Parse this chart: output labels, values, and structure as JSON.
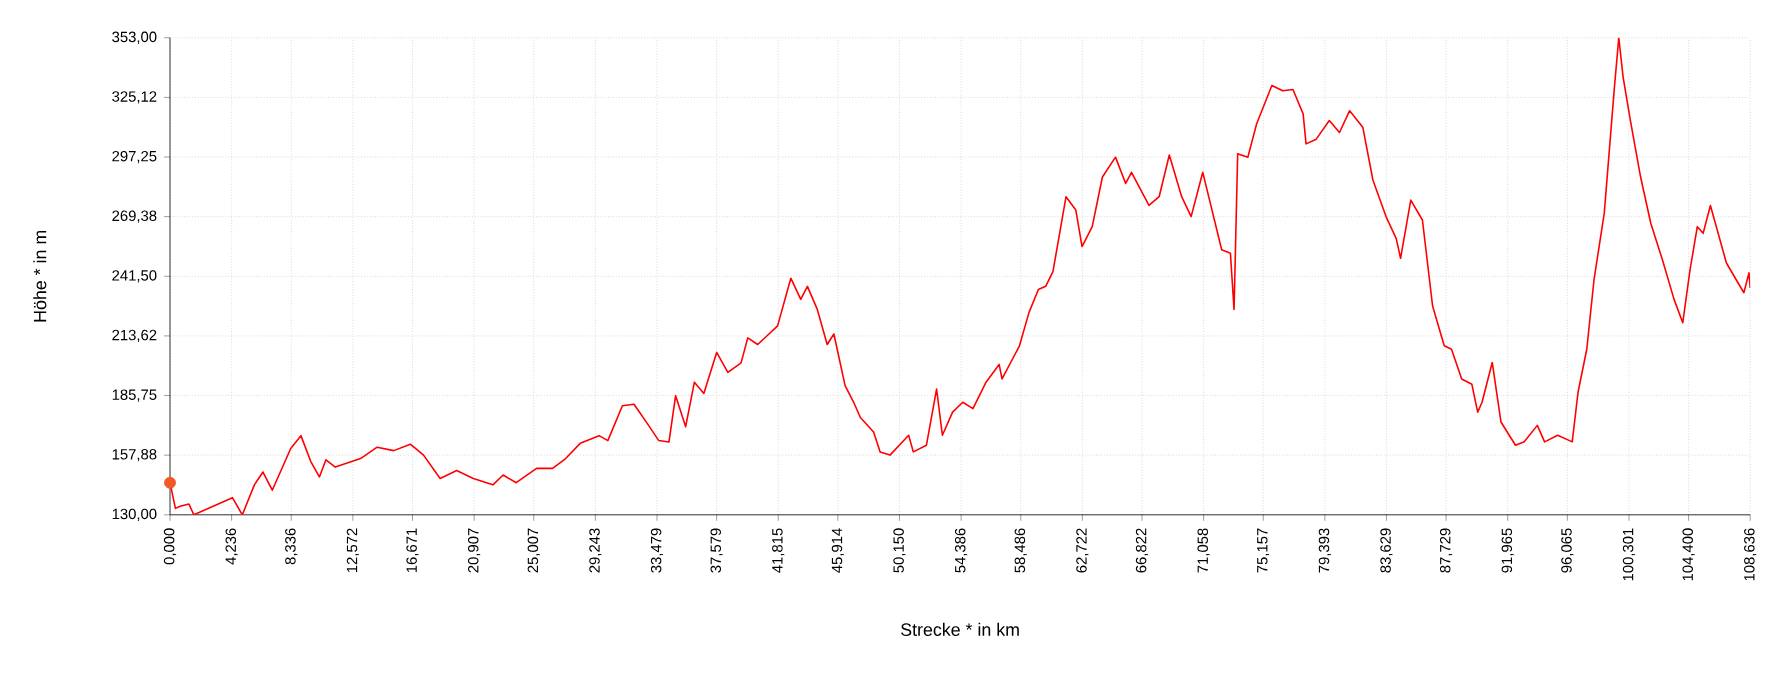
{
  "chart_data": {
    "type": "line",
    "xlabel": "Strecke *  in  km",
    "ylabel": "Höhe *  in  m",
    "xlim": [
      0,
      108.636
    ],
    "ylim": [
      130,
      353
    ],
    "xticks": [
      {
        "value": 0,
        "label": "0,000"
      },
      {
        "value": 4.236,
        "label": "4,236"
      },
      {
        "value": 8.336,
        "label": "8,336"
      },
      {
        "value": 12.572,
        "label": "12,572"
      },
      {
        "value": 16.671,
        "label": "16,671"
      },
      {
        "value": 20.907,
        "label": "20,907"
      },
      {
        "value": 25.007,
        "label": "25,007"
      },
      {
        "value": 29.243,
        "label": "29,243"
      },
      {
        "value": 33.479,
        "label": "33,479"
      },
      {
        "value": 37.579,
        "label": "37,579"
      },
      {
        "value": 41.815,
        "label": "41,815"
      },
      {
        "value": 45.914,
        "label": "45,914"
      },
      {
        "value": 50.15,
        "label": "50,150"
      },
      {
        "value": 54.386,
        "label": "54,386"
      },
      {
        "value": 58.486,
        "label": "58,486"
      },
      {
        "value": 62.722,
        "label": "62,722"
      },
      {
        "value": 66.822,
        "label": "66,822"
      },
      {
        "value": 71.058,
        "label": "71,058"
      },
      {
        "value": 75.157,
        "label": "75,157"
      },
      {
        "value": 79.393,
        "label": "79,393"
      },
      {
        "value": 83.629,
        "label": "83,629"
      },
      {
        "value": 87.729,
        "label": "87,729"
      },
      {
        "value": 91.965,
        "label": "91,965"
      },
      {
        "value": 96.065,
        "label": "96,065"
      },
      {
        "value": 100.301,
        "label": "100,301"
      },
      {
        "value": 104.4,
        "label": "104,400"
      },
      {
        "value": 108.636,
        "label": "108,636"
      }
    ],
    "yticks": [
      {
        "value": 130,
        "label": "130,00"
      },
      {
        "value": 157.88,
        "label": "157,88"
      },
      {
        "value": 185.75,
        "label": "185,75"
      },
      {
        "value": 213.62,
        "label": "213,62"
      },
      {
        "value": 241.5,
        "label": "241,50"
      },
      {
        "value": 269.38,
        "label": "269,38"
      },
      {
        "value": 297.25,
        "label": "297,25"
      },
      {
        "value": 325.12,
        "label": "325,12"
      },
      {
        "value": 353,
        "label": "353,00"
      }
    ],
    "grid": true,
    "series": [
      {
        "color": "#ff0000",
        "x": [
          0,
          0.37,
          0.7,
          1.3,
          1.64,
          4.29,
          4.97,
          5.8,
          6.39,
          7.03,
          8.3,
          9.0,
          9.67,
          10.27,
          10.72,
          11.36,
          13.1,
          14.24,
          15.38,
          16.52,
          17.43,
          18.57,
          19.71,
          20.85,
          22.2,
          22.9,
          23.8,
          25.2,
          26.3,
          27.2,
          28.2,
          29.5,
          30.1,
          31.1,
          31.9,
          32.9,
          33.6,
          34.3,
          34.76,
          35.45,
          36.05,
          36.7,
          37.58,
          38.35,
          39.26,
          39.72,
          40.4,
          41.77,
          42.68,
          43.36,
          43.82,
          44.5,
          45.18,
          45.64,
          46.41,
          47.0,
          47.46,
          48.37,
          48.82,
          49.5,
          50.78,
          51.1,
          52.0,
          52.7,
          53.1,
          53.8,
          54.5,
          55.2,
          56.1,
          57.0,
          57.2,
          58.4,
          59.05,
          59.7,
          60.2,
          60.7,
          61.6,
          62.27,
          62.7,
          63.4,
          64.1,
          65.0,
          65.7,
          66.1,
          67.3,
          68.0,
          68.7,
          69.55,
          70.2,
          71.0,
          72.3,
          72.9,
          73.15,
          73.4,
          74.1,
          74.7,
          75.75,
          76.5,
          77.2,
          77.9,
          78.1,
          78.8,
          79.7,
          80.4,
          81.1,
          82.0,
          82.7,
          83.6,
          84.3,
          84.6,
          85.3,
          86.1,
          86.8,
          87.6,
          88.1,
          88.8,
          89.5,
          89.9,
          90.2,
          90.9,
          91.5,
          92.5,
          93.1,
          94.0,
          94.5,
          95.4,
          96.4,
          96.8,
          97.4,
          97.9,
          98.6,
          99.3,
          99.6,
          99.9,
          100.4,
          101.1,
          101.8,
          102.6,
          103.4,
          104.0,
          104.5,
          105.0,
          105.4,
          105.9,
          107.0,
          108.2,
          108.55,
          108.636
        ],
        "values": [
          145,
          133,
          134,
          135,
          130,
          138,
          130,
          144,
          150,
          141.5,
          161,
          167,
          155,
          147.7,
          155.7,
          152.3,
          156.3,
          161.6,
          160,
          163,
          157.9,
          147,
          150.7,
          147,
          144,
          148.6,
          145,
          151.7,
          151.7,
          156.3,
          163.4,
          167,
          164.7,
          181,
          181.7,
          171.8,
          164.7,
          164,
          185.7,
          171.2,
          192,
          186.7,
          205.9,
          196.6,
          201,
          212.7,
          209.6,
          218.3,
          240.6,
          230.7,
          236.8,
          226,
          209.6,
          214.5,
          190.4,
          182.6,
          175.5,
          168.7,
          159.4,
          157.9,
          167.2,
          159.4,
          162.5,
          188.8,
          167.2,
          178,
          182.6,
          179.6,
          192,
          200.3,
          193.5,
          209,
          224.5,
          235.3,
          236.8,
          243.7,
          278.7,
          272.5,
          255.4,
          264.7,
          287.9,
          297.2,
          284.9,
          290.1,
          274.6,
          278.7,
          298.2,
          278.7,
          269.4,
          290.1,
          253.9,
          252.3,
          226,
          298.8,
          297.2,
          312.7,
          330.7,
          328.2,
          328.8,
          317.4,
          303.4,
          305.6,
          314.3,
          308.7,
          318.9,
          311.2,
          286.4,
          269.4,
          259.1,
          249.9,
          277.1,
          267.8,
          227.6,
          209,
          207.4,
          193.5,
          191,
          178,
          182.6,
          201.2,
          173.4,
          162.5,
          164.1,
          171.8,
          164.1,
          167.2,
          164.1,
          187.3,
          207.4,
          240,
          270.9,
          329.8,
          353,
          334.5,
          314.3,
          287.9,
          266.3,
          249.2,
          230.7,
          219.8,
          244.6,
          264.7,
          261.6,
          274.6,
          247.7,
          233.8,
          243.1,
          236
        ]
      },
      {
        "type": "scatter",
        "color": "#f05a28",
        "marker": "circle",
        "x": [
          0
        ],
        "values": [
          145
        ]
      }
    ]
  }
}
